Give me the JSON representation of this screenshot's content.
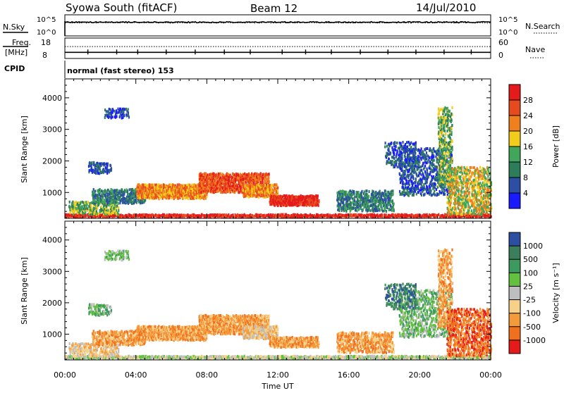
{
  "header": {
    "station": "Syowa South (fitACF)",
    "beam": "Beam 12",
    "date": "14/Jul/2010"
  },
  "noise_panel": {
    "left_label": "N.Sky",
    "right_label": "N.Search",
    "tick_top": "10^5",
    "tick_bottom": "10^0"
  },
  "freq_panel": {
    "left_label_1": "Freq.",
    "left_label_2": "[MHz]",
    "left_ticks": [
      "18",
      "8"
    ],
    "right_ticks": [
      "60",
      "0"
    ],
    "right_label": "Nave"
  },
  "cpid": {
    "label": "CPID",
    "text": "normal (fast stereo) 153"
  },
  "x_axis": {
    "label": "Time UT",
    "ticks": [
      "00:00",
      "04:00",
      "08:00",
      "12:00",
      "16:00",
      "20:00",
      "00:00"
    ],
    "range_hours": [
      0,
      24
    ]
  },
  "y_axis": {
    "label": "Slant Range [km]",
    "ticks": [
      "1000",
      "2000",
      "3000",
      "4000"
    ],
    "range_km": [
      180,
      4600
    ]
  },
  "power_scale": {
    "label": "Power [dB]",
    "ticks": [
      "4",
      "8",
      "12",
      "16",
      "20",
      "24",
      "28"
    ],
    "colors": [
      "#1a1aff",
      "#2c4fa3",
      "#2e7d5a",
      "#41a55b",
      "#f2cc1a",
      "#f07f1e",
      "#e84a1f",
      "#e51a1a"
    ]
  },
  "velocity_scale": {
    "label": "Velocity [m s⁻¹]",
    "ticks": [
      "1000",
      "500",
      "100",
      "25",
      "-25",
      "-100",
      "-500",
      "-1000"
    ],
    "colors": [
      "#2d4fa1",
      "#3c7d5a",
      "#3d9a5e",
      "#63c040",
      "#bebebe",
      "#f6d18a",
      "#f59a3a",
      "#f0701e",
      "#e51a1a"
    ]
  },
  "chart_data": {
    "type": "heatmap",
    "panels": [
      "Power",
      "Velocity"
    ],
    "x_unit": "hours UT",
    "y_unit": "km",
    "regions": [
      {
        "t": [
          0.0,
          24.0
        ],
        "r": [
          220,
          300
        ],
        "density": 0.9,
        "power_level": 7,
        "velocity_level": 4
      },
      {
        "t": [
          0.2,
          3.0
        ],
        "r": [
          300,
          700
        ],
        "density": 0.5,
        "power_level": 3,
        "velocity_level": 5
      },
      {
        "t": [
          1.5,
          4.5
        ],
        "r": [
          650,
          1100
        ],
        "density": 0.6,
        "power_level": 2,
        "velocity_level": 6
      },
      {
        "t": [
          4.0,
          8.0
        ],
        "r": [
          800,
          1250
        ],
        "density": 0.85,
        "power_level": 5,
        "velocity_level": 6
      },
      {
        "t": [
          7.5,
          11.5
        ],
        "r": [
          1000,
          1600
        ],
        "density": 0.8,
        "power_level": 6,
        "velocity_level": 6
      },
      {
        "t": [
          10.0,
          12.0
        ],
        "r": [
          850,
          1250
        ],
        "density": 0.7,
        "power_level": 5,
        "velocity_level": 5
      },
      {
        "t": [
          11.5,
          14.3
        ],
        "r": [
          580,
          900
        ],
        "density": 0.9,
        "power_level": 7,
        "velocity_level": 6
      },
      {
        "t": [
          15.3,
          18.5
        ],
        "r": [
          400,
          1050
        ],
        "density": 0.55,
        "power_level": 2,
        "velocity_level": 6
      },
      {
        "t": [
          18.8,
          21.8
        ],
        "r": [
          900,
          2400
        ],
        "density": 0.35,
        "power_level": 1,
        "velocity_level": 3
      },
      {
        "t": [
          21.0,
          21.8
        ],
        "r": [
          1200,
          3700
        ],
        "density": 0.4,
        "power_level": 3,
        "velocity_level": 6
      },
      {
        "t": [
          21.5,
          24.0
        ],
        "r": [
          300,
          1800
        ],
        "density": 0.4,
        "power_level": 4,
        "velocity_level": 7
      },
      {
        "t": [
          2.2,
          3.6
        ],
        "r": [
          3350,
          3650
        ],
        "density": 0.45,
        "power_level": 1,
        "velocity_level": 3
      },
      {
        "t": [
          1.3,
          2.6
        ],
        "r": [
          1600,
          1950
        ],
        "density": 0.5,
        "power_level": 1,
        "velocity_level": 3
      },
      {
        "t": [
          18.0,
          19.8
        ],
        "r": [
          1800,
          2600
        ],
        "density": 0.3,
        "power_level": 1,
        "velocity_level": 1
      }
    ],
    "noise_sky_level": 0.65,
    "freq_mhz": 11.0,
    "nave": 35
  }
}
